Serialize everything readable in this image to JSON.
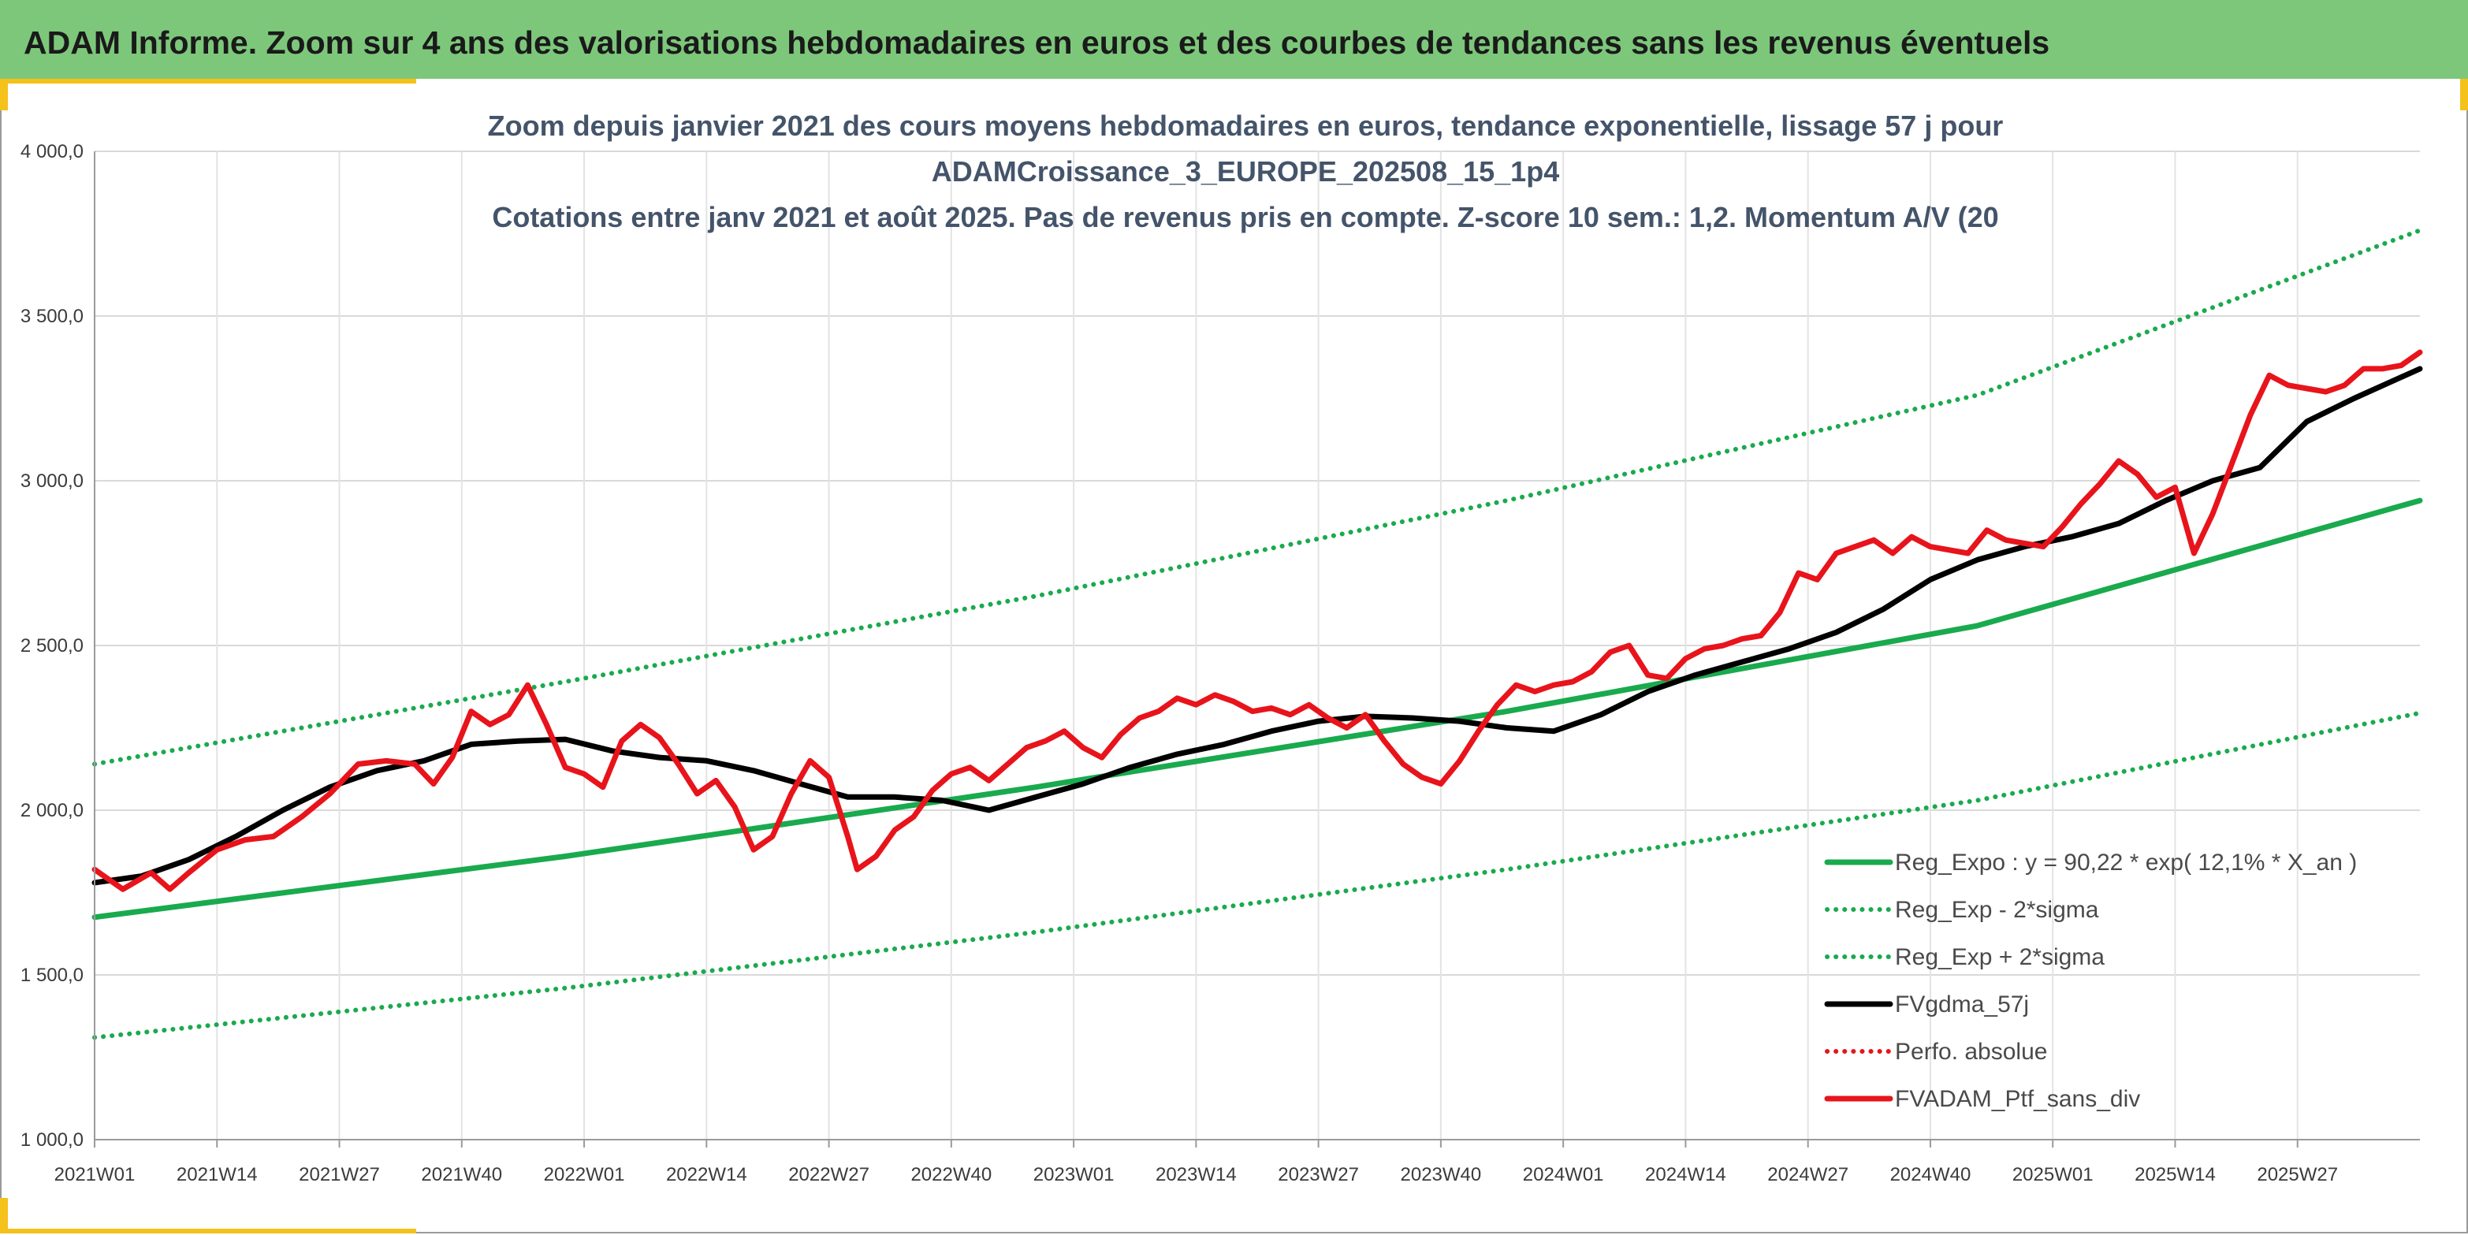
{
  "banner": {
    "title": "ADAM Informe. Zoom sur 4 ans des valorisations hebdomadaires en euros et des courbes de tendances sans les revenus éventuels"
  },
  "chart_data": {
    "type": "line",
    "title_lines": [
      "Zoom depuis janvier 2021 des cours moyens hebdomadaires en euros, tendance exponentielle, lissage 57 j pour",
      "ADAMCroissance_3_EUROPE_202508_15_1p4",
      "Cotations entre janv 2021 et août 2025. Pas de revenus pris en compte. Z-score 10 sem.: 1,2. Momentum A/V (20"
    ],
    "y_ticks": [
      "1 000,0",
      "1 500,0",
      "2 000,0",
      "2 500,0",
      "3 000,0",
      "3 500,0",
      "4 000,0"
    ],
    "ylim": [
      1000,
      4000
    ],
    "x_ticks": [
      "2021W01",
      "2021W14",
      "2021W27",
      "2021W40",
      "2022W01",
      "2022W14",
      "2022W27",
      "2022W40",
      "2023W01",
      "2023W14",
      "2023W27",
      "2023W40",
      "2024W01",
      "2024W14",
      "2024W27",
      "2024W40",
      "2025W01",
      "2025W14",
      "2025W27"
    ],
    "x_unit_note": "weeks since 2021W01 (13 weeks between ticks)",
    "xlim_weeks": [
      0,
      247
    ],
    "grid": true,
    "legend_position": "bottom-right",
    "legend": [
      {
        "label": "Reg_Expo : y = 90,22 * exp( 12,1% *  X_an )",
        "color": "#1aaa4e",
        "style": "solid"
      },
      {
        "label": "Reg_Exp - 2*sigma",
        "color": "#1aaa4e",
        "style": "dotted"
      },
      {
        "label": "Reg_Exp + 2*sigma",
        "color": "#1aaa4e",
        "style": "dotted"
      },
      {
        "label": "FVgdma_57j",
        "color": "#000000",
        "style": "solid"
      },
      {
        "label": "Perfo. absolue",
        "color": "#e8141b",
        "style": "dotted"
      },
      {
        "label": "FVADAM_Ptf_sans_div",
        "color": "#e8141b",
        "style": "solid"
      }
    ],
    "series": [
      {
        "name": "Reg_Expo : y = 90,22 * exp( 12,1% *  X_an )",
        "color": "#1aaa4e",
        "style": "solid",
        "points": [
          [
            0,
            1675
          ],
          [
            50,
            1860
          ],
          [
            100,
            2070
          ],
          [
            150,
            2300
          ],
          [
            200,
            2560
          ],
          [
            247,
            2940
          ]
        ]
      },
      {
        "name": "Reg_Exp - 2*sigma",
        "color": "#1aaa4e",
        "style": "dotted",
        "points": [
          [
            0,
            1310
          ],
          [
            50,
            1460
          ],
          [
            100,
            1630
          ],
          [
            150,
            1820
          ],
          [
            200,
            2030
          ],
          [
            247,
            2295
          ]
        ]
      },
      {
        "name": "Reg_Exp + 2*sigma",
        "color": "#1aaa4e",
        "style": "dotted",
        "points": [
          [
            0,
            2140
          ],
          [
            50,
            2390
          ],
          [
            100,
            2650
          ],
          [
            150,
            2940
          ],
          [
            200,
            3260
          ],
          [
            247,
            3760
          ]
        ]
      },
      {
        "name": "FVgdma_57j",
        "color": "#000000",
        "style": "solid",
        "points": [
          [
            0,
            1780
          ],
          [
            5,
            1800
          ],
          [
            10,
            1850
          ],
          [
            15,
            1920
          ],
          [
            20,
            2000
          ],
          [
            25,
            2070
          ],
          [
            30,
            2120
          ],
          [
            35,
            2150
          ],
          [
            40,
            2200
          ],
          [
            45,
            2210
          ],
          [
            50,
            2215
          ],
          [
            55,
            2180
          ],
          [
            60,
            2160
          ],
          [
            65,
            2150
          ],
          [
            70,
            2120
          ],
          [
            75,
            2080
          ],
          [
            80,
            2040
          ],
          [
            85,
            2040
          ],
          [
            90,
            2030
          ],
          [
            95,
            2000
          ],
          [
            100,
            2040
          ],
          [
            105,
            2080
          ],
          [
            110,
            2130
          ],
          [
            115,
            2170
          ],
          [
            120,
            2200
          ],
          [
            125,
            2240
          ],
          [
            130,
            2270
          ],
          [
            135,
            2285
          ],
          [
            140,
            2280
          ],
          [
            145,
            2270
          ],
          [
            150,
            2250
          ],
          [
            155,
            2240
          ],
          [
            160,
            2290
          ],
          [
            165,
            2360
          ],
          [
            170,
            2410
          ],
          [
            175,
            2450
          ],
          [
            180,
            2490
          ],
          [
            185,
            2540
          ],
          [
            190,
            2610
          ],
          [
            195,
            2700
          ],
          [
            200,
            2760
          ],
          [
            205,
            2800
          ],
          [
            210,
            2830
          ],
          [
            215,
            2870
          ],
          [
            220,
            2940
          ],
          [
            225,
            3000
          ],
          [
            230,
            3040
          ],
          [
            235,
            3180
          ],
          [
            240,
            3250
          ],
          [
            247,
            3340
          ]
        ]
      },
      {
        "name": "FVADAM_Ptf_sans_div",
        "color": "#e8141b",
        "style": "solid",
        "points": [
          [
            0,
            1820
          ],
          [
            3,
            1760
          ],
          [
            6,
            1810
          ],
          [
            8,
            1760
          ],
          [
            10,
            1810
          ],
          [
            13,
            1880
          ],
          [
            16,
            1910
          ],
          [
            19,
            1920
          ],
          [
            22,
            1980
          ],
          [
            25,
            2050
          ],
          [
            28,
            2140
          ],
          [
            31,
            2150
          ],
          [
            34,
            2140
          ],
          [
            36,
            2080
          ],
          [
            38,
            2160
          ],
          [
            40,
            2300
          ],
          [
            42,
            2260
          ],
          [
            44,
            2290
          ],
          [
            46,
            2380
          ],
          [
            48,
            2260
          ],
          [
            50,
            2130
          ],
          [
            52,
            2110
          ],
          [
            54,
            2070
          ],
          [
            56,
            2210
          ],
          [
            58,
            2260
          ],
          [
            60,
            2220
          ],
          [
            62,
            2140
          ],
          [
            64,
            2050
          ],
          [
            66,
            2090
          ],
          [
            68,
            2010
          ],
          [
            70,
            1880
          ],
          [
            72,
            1920
          ],
          [
            74,
            2050
          ],
          [
            76,
            2150
          ],
          [
            78,
            2100
          ],
          [
            80,
            1920
          ],
          [
            81,
            1820
          ],
          [
            83,
            1860
          ],
          [
            85,
            1940
          ],
          [
            87,
            1980
          ],
          [
            89,
            2060
          ],
          [
            91,
            2110
          ],
          [
            93,
            2130
          ],
          [
            95,
            2090
          ],
          [
            97,
            2140
          ],
          [
            99,
            2190
          ],
          [
            101,
            2210
          ],
          [
            103,
            2240
          ],
          [
            105,
            2190
          ],
          [
            107,
            2160
          ],
          [
            109,
            2230
          ],
          [
            111,
            2280
          ],
          [
            113,
            2300
          ],
          [
            115,
            2340
          ],
          [
            117,
            2320
          ],
          [
            119,
            2350
          ],
          [
            121,
            2330
          ],
          [
            123,
            2300
          ],
          [
            125,
            2310
          ],
          [
            127,
            2290
          ],
          [
            129,
            2320
          ],
          [
            131,
            2280
          ],
          [
            133,
            2250
          ],
          [
            135,
            2290
          ],
          [
            137,
            2210
          ],
          [
            139,
            2140
          ],
          [
            141,
            2100
          ],
          [
            143,
            2080
          ],
          [
            145,
            2150
          ],
          [
            147,
            2240
          ],
          [
            149,
            2320
          ],
          [
            151,
            2380
          ],
          [
            153,
            2360
          ],
          [
            155,
            2380
          ],
          [
            157,
            2390
          ],
          [
            159,
            2420
          ],
          [
            161,
            2480
          ],
          [
            163,
            2500
          ],
          [
            165,
            2410
          ],
          [
            167,
            2400
          ],
          [
            169,
            2460
          ],
          [
            171,
            2490
          ],
          [
            173,
            2500
          ],
          [
            175,
            2520
          ],
          [
            177,
            2530
          ],
          [
            179,
            2600
          ],
          [
            181,
            2720
          ],
          [
            183,
            2700
          ],
          [
            185,
            2780
          ],
          [
            187,
            2800
          ],
          [
            189,
            2820
          ],
          [
            191,
            2780
          ],
          [
            193,
            2830
          ],
          [
            195,
            2800
          ],
          [
            197,
            2790
          ],
          [
            199,
            2780
          ],
          [
            201,
            2850
          ],
          [
            203,
            2820
          ],
          [
            205,
            2810
          ],
          [
            207,
            2800
          ],
          [
            209,
            2860
          ],
          [
            211,
            2930
          ],
          [
            213,
            2990
          ],
          [
            215,
            3060
          ],
          [
            217,
            3020
          ],
          [
            219,
            2950
          ],
          [
            221,
            2980
          ],
          [
            223,
            2780
          ],
          [
            225,
            2900
          ],
          [
            227,
            3050
          ],
          [
            229,
            3200
          ],
          [
            231,
            3320
          ],
          [
            233,
            3290
          ],
          [
            235,
            3280
          ],
          [
            237,
            3270
          ],
          [
            239,
            3290
          ],
          [
            241,
            3340
          ],
          [
            243,
            3340
          ],
          [
            245,
            3350
          ],
          [
            247,
            3390
          ]
        ]
      }
    ]
  }
}
